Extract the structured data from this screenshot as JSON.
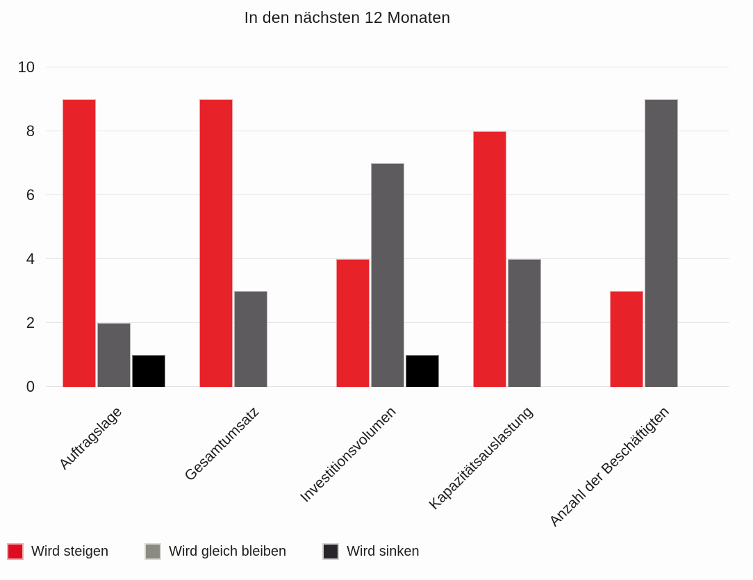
{
  "title": "In den nächsten 12 Monaten",
  "colors": {
    "text": "#1d1d1b",
    "gridline": "#e3e3e3",
    "background": "#fdfdfd"
  },
  "chart_data": {
    "type": "bar",
    "title": "In den nächsten 12 Monaten",
    "categories": [
      "Auftragslage",
      "Gesamtumsatz",
      "Investitionsvolumen",
      "Kapazitätsauslastung",
      "Anzahl der Beschäftigten"
    ],
    "series": [
      {
        "name": "Wird steigen",
        "color": "#e82229",
        "swatch_fill": "#dc0d1e",
        "swatch_border": "#f0a9b0",
        "values": [
          9,
          9,
          4,
          8,
          3
        ]
      },
      {
        "name": "Wird gleich bleiben",
        "color": "#5e5b5e",
        "swatch_fill": "#8a8a83",
        "swatch_border": "#d8d8d2",
        "values": [
          2,
          3,
          7,
          4,
          9
        ]
      },
      {
        "name": "Wird sinken",
        "color": "#000000",
        "swatch_fill": "#28252b",
        "swatch_border": "#d2d2d2",
        "values": [
          1,
          0,
          1,
          0,
          0
        ]
      }
    ],
    "xlabel": "",
    "ylabel": "",
    "ylim": [
      0,
      10
    ],
    "yticks": [
      0,
      2,
      4,
      6,
      8,
      10
    ],
    "grid": true,
    "legend_position": "bottom"
  }
}
